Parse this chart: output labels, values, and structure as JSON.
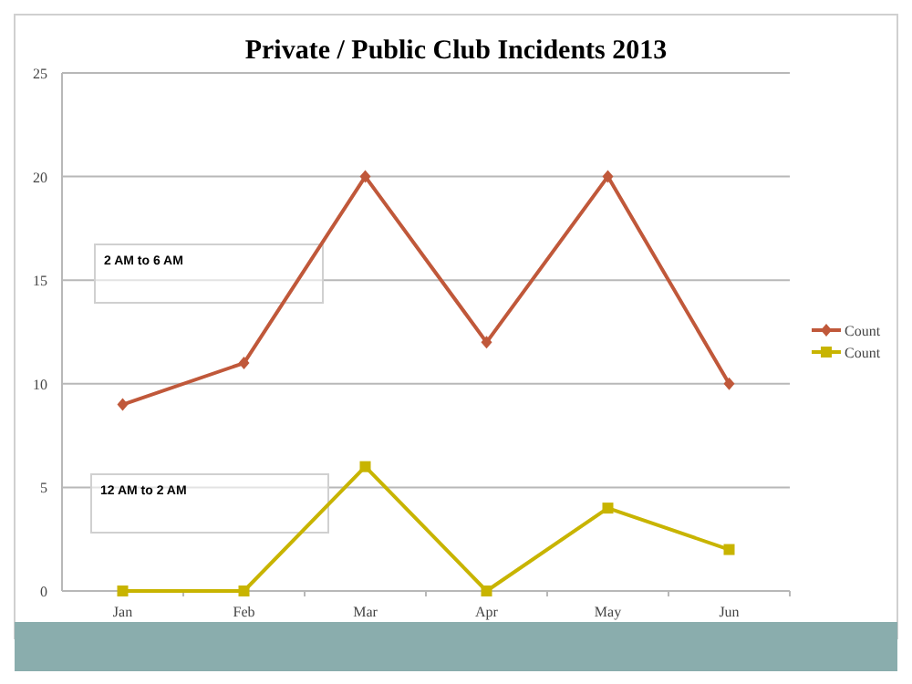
{
  "chart_data": {
    "type": "line",
    "title": "Private / Public Club Incidents 2013",
    "categories": [
      "Jan",
      "Feb",
      "Mar",
      "Apr",
      "May",
      "Jun"
    ],
    "series": [
      {
        "name": "Count",
        "color": "#c0583a",
        "values": [
          9,
          11,
          20,
          12,
          20,
          10
        ],
        "marker": "diamond"
      },
      {
        "name": "Count",
        "color": "#c8b400",
        "values": [
          0,
          0,
          6,
          0,
          4,
          2
        ],
        "marker": "square"
      }
    ],
    "ylim": [
      0,
      25
    ],
    "yticks": [
      0,
      5,
      10,
      15,
      20,
      25
    ],
    "grid": "y",
    "legend": "right",
    "annotations": [
      "2 AM to 6 AM",
      "12 AM to 2 AM"
    ]
  }
}
